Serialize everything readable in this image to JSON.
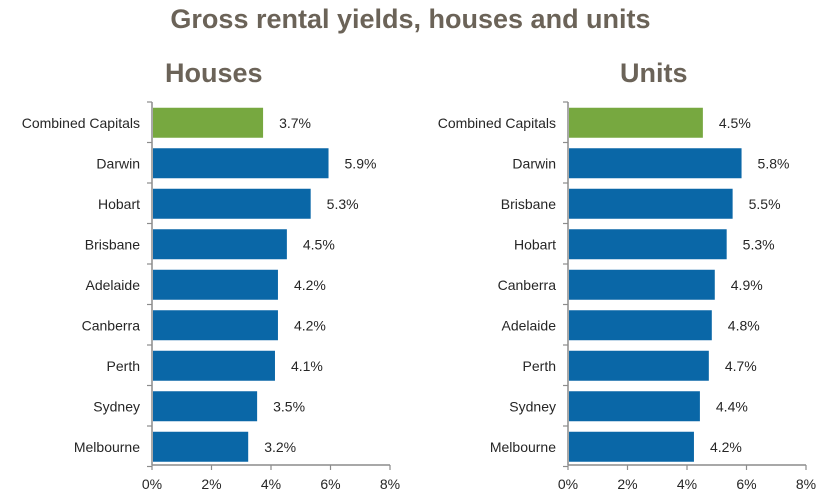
{
  "title": "Gross rental yields, houses and units",
  "colors": {
    "highlight": "#77a840",
    "bar": "#0a67a7",
    "axis": "#8c8c8c",
    "title": "#6b6358"
  },
  "chart_data": [
    {
      "type": "bar",
      "orientation": "horizontal",
      "title": "Houses",
      "categories": [
        "Combined Capitals",
        "Darwin",
        "Hobart",
        "Brisbane",
        "Adelaide",
        "Canberra",
        "Perth",
        "Sydney",
        "Melbourne"
      ],
      "values": [
        3.7,
        5.9,
        5.3,
        4.5,
        4.2,
        4.2,
        4.1,
        3.5,
        3.2
      ],
      "value_labels": [
        "3.7%",
        "5.9%",
        "5.3%",
        "4.5%",
        "4.2%",
        "4.2%",
        "4.1%",
        "3.5%",
        "3.2%"
      ],
      "xlim": [
        0,
        8
      ],
      "xticks": [
        0,
        2,
        4,
        6,
        8
      ],
      "xtick_labels": [
        "0%",
        "2%",
        "4%",
        "6%",
        "8%"
      ],
      "highlight_category": "Combined Capitals"
    },
    {
      "type": "bar",
      "orientation": "horizontal",
      "title": "Units",
      "categories": [
        "Combined Capitals",
        "Darwin",
        "Brisbane",
        "Hobart",
        "Canberra",
        "Adelaide",
        "Perth",
        "Sydney",
        "Melbourne"
      ],
      "values": [
        4.5,
        5.8,
        5.5,
        5.3,
        4.9,
        4.8,
        4.7,
        4.4,
        4.2
      ],
      "value_labels": [
        "4.5%",
        "5.8%",
        "5.5%",
        "5.3%",
        "4.9%",
        "4.8%",
        "4.7%",
        "4.4%",
        "4.2%"
      ],
      "xlim": [
        0,
        8
      ],
      "xticks": [
        0,
        2,
        4,
        6,
        8
      ],
      "xtick_labels": [
        "0%",
        "2%",
        "4%",
        "6%",
        "8%"
      ],
      "highlight_category": "Combined Capitals"
    }
  ]
}
